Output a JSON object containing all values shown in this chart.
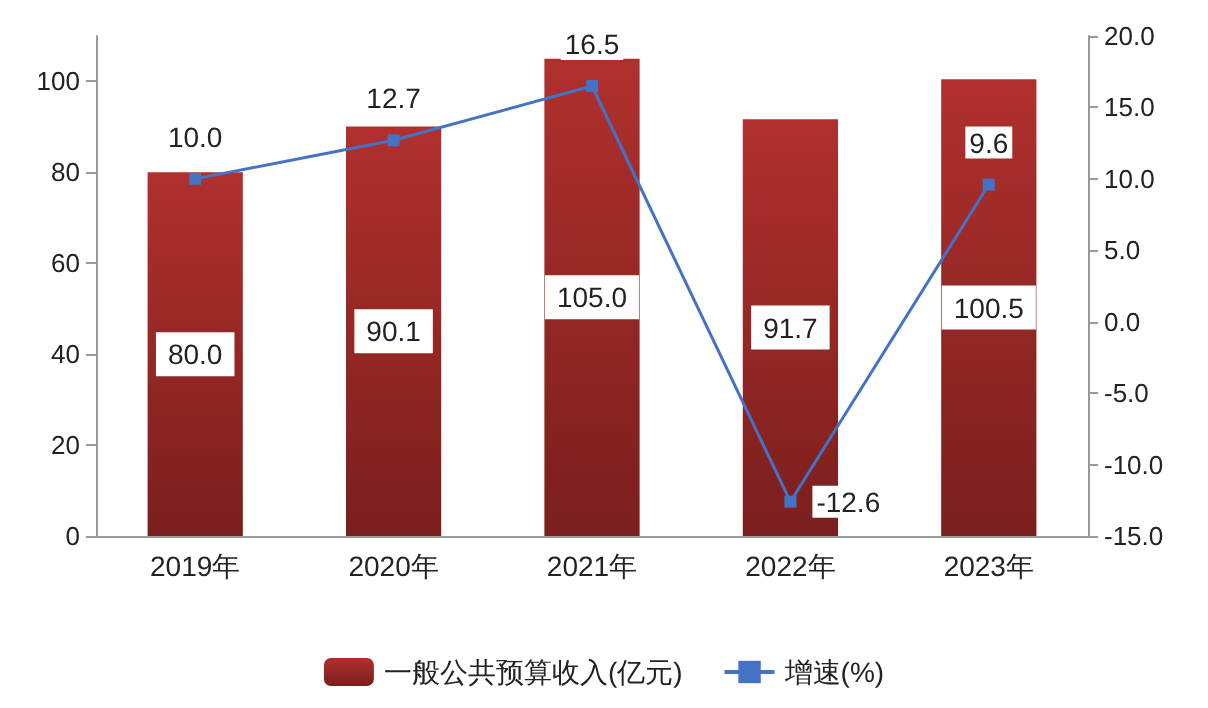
{
  "chart_data": {
    "type": "bar",
    "categories": [
      "2019年",
      "2020年",
      "2021年",
      "2022年",
      "2023年"
    ],
    "series": [
      {
        "name": "一般公共预算收入(亿元)",
        "color": "#b0302e",
        "values": [
          80.0,
          90.1,
          105.0,
          91.7,
          100.5
        ],
        "value_labels": [
          "80.0",
          "90.1",
          "105.0",
          "91.7",
          "100.5"
        ]
      },
      {
        "name": "增速(%)",
        "type": "line",
        "axis": "y2",
        "color": "#4472c4",
        "values": [
          10.0,
          12.7,
          16.5,
          -12.6,
          9.6
        ],
        "value_labels": [
          "10.0",
          "12.7",
          "16.5",
          "-12.6",
          "9.6"
        ],
        "marker": "square"
      }
    ],
    "ylim": [
      0,
      110
    ],
    "yticks": [
      0,
      20,
      40,
      60,
      80,
      100
    ],
    "y2lim": [
      -15,
      20
    ],
    "y2ticks": [
      {
        "value": -15,
        "label": "-15.0"
      },
      {
        "value": -10,
        "label": "-10.0"
      },
      {
        "value": -5,
        "label": "-5.0"
      },
      {
        "value": 0,
        "label": "0.0"
      },
      {
        "value": 5,
        "label": "5.0"
      },
      {
        "value": 10,
        "label": "10.0"
      },
      {
        "value": 15,
        "label": "15.0"
      },
      {
        "value": 20,
        "label": "20.0"
      }
    ],
    "legend": "bottom",
    "grid": false
  }
}
